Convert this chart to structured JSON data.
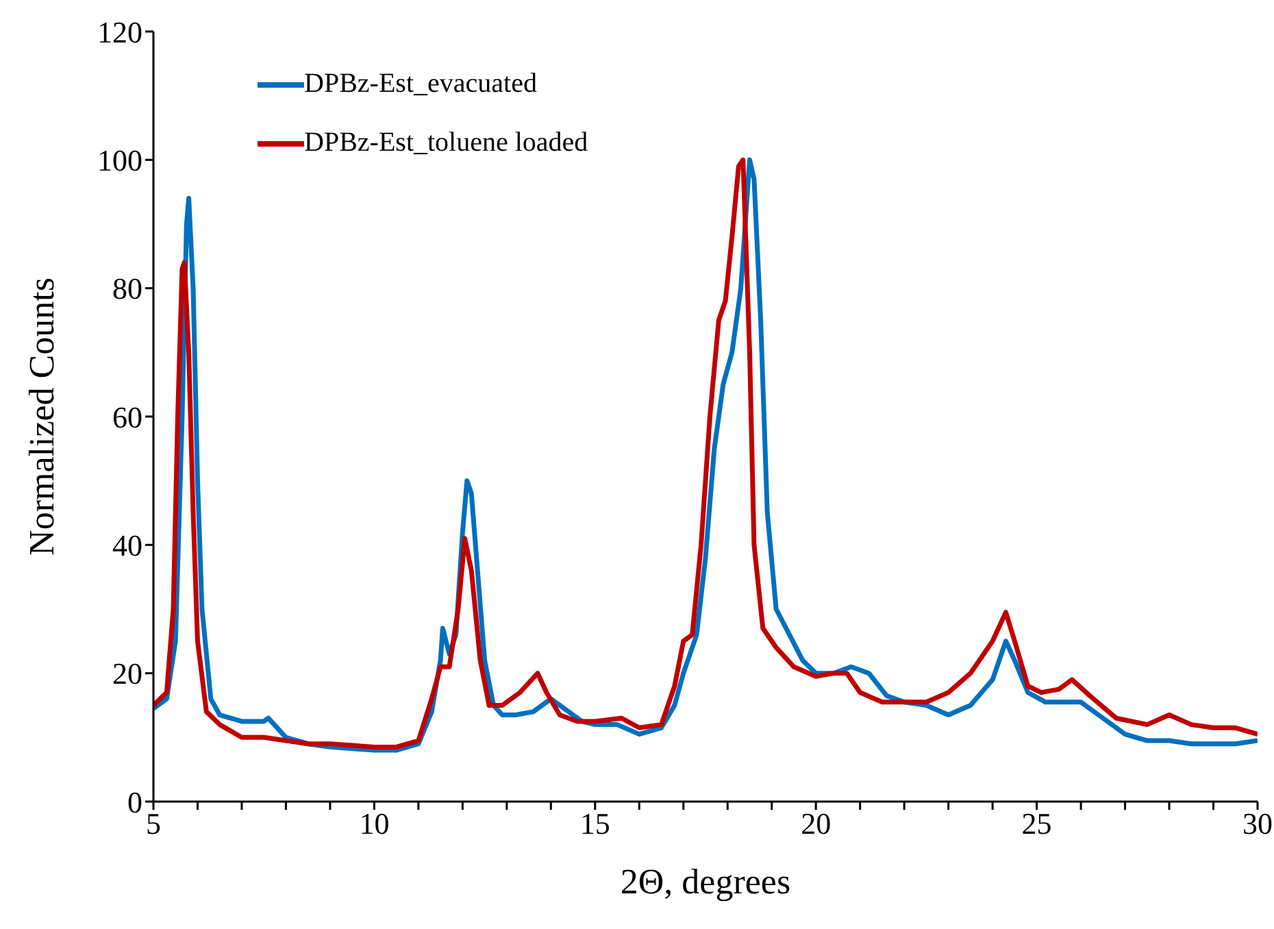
{
  "chart_data": {
    "type": "line",
    "xlabel": "2Θ, degrees",
    "ylabel": "Normalized Counts",
    "xlim": [
      5,
      30
    ],
    "ylim": [
      0,
      120
    ],
    "xticks": [
      5,
      {
        "value": 6,
        "label": null
      },
      {
        "value": 7,
        "label": null
      },
      {
        "value": 8,
        "label": null
      },
      {
        "value": 9,
        "label": null
      },
      10,
      {
        "value": 11,
        "label": null
      },
      {
        "value": 12,
        "label": null
      },
      {
        "value": 13,
        "label": null
      },
      {
        "value": 14,
        "label": null
      },
      15,
      {
        "value": 16,
        "label": null
      },
      {
        "value": 17,
        "label": null
      },
      {
        "value": 18,
        "label": null
      },
      {
        "value": 19,
        "label": null
      },
      20,
      {
        "value": 21,
        "label": null
      },
      {
        "value": 22,
        "label": null
      },
      {
        "value": 23,
        "label": null
      },
      {
        "value": 24,
        "label": null
      },
      25,
      {
        "value": 26,
        "label": null
      },
      {
        "value": 27,
        "label": null
      },
      {
        "value": 28,
        "label": null
      },
      {
        "value": 29,
        "label": null
      },
      30
    ],
    "yticks": [
      0,
      20,
      40,
      60,
      80,
      100,
      120
    ],
    "grid": false,
    "legend": "top left",
    "marker": "none",
    "line_style": "solid",
    "series": [
      {
        "name": "DPBz-Est_evacuated",
        "color": "#0070c0",
        "x": [
          5.0,
          5.3,
          5.5,
          5.65,
          5.75,
          5.8,
          5.9,
          6.0,
          6.1,
          6.3,
          6.5,
          7.0,
          7.5,
          7.6,
          8.0,
          8.5,
          9.0,
          10,
          10.5,
          11.0,
          11.3,
          11.5,
          11.55,
          11.7,
          11.85,
          12.0,
          12.1,
          12.2,
          12.35,
          12.5,
          12.7,
          12.9,
          13.2,
          13.6,
          14.0,
          14.3,
          14.7,
          15,
          15.5,
          16,
          16.5,
          16.8,
          17.0,
          17.3,
          17.5,
          17.7,
          17.9,
          18.1,
          18.3,
          18.5,
          18.6,
          18.75,
          18.9,
          19.1,
          19.4,
          19.7,
          20,
          20.4,
          20.8,
          21.2,
          21.6,
          22,
          22.5,
          23,
          23.5,
          24,
          24.3,
          24.5,
          24.8,
          25.2,
          25.6,
          26,
          26.5,
          27,
          27.5,
          28,
          28.5,
          29,
          29.5,
          30
        ],
        "values": [
          14.5,
          16,
          25,
          60,
          90,
          94,
          80,
          50,
          30,
          16,
          13.5,
          12.5,
          12.5,
          13,
          10,
          9,
          8.5,
          8,
          8,
          9,
          14,
          22,
          27,
          23,
          26,
          42,
          50,
          48,
          35,
          22,
          15,
          13.5,
          13.5,
          14,
          16,
          14.5,
          12.5,
          12,
          12,
          10.5,
          11.5,
          15,
          20,
          26,
          38,
          55,
          65,
          70,
          80,
          100,
          97,
          75,
          45,
          30,
          26,
          22,
          20,
          20,
          21,
          20,
          16.5,
          15.5,
          15,
          13.5,
          15,
          19,
          25,
          22,
          17,
          15.5,
          15.5,
          15.5,
          13,
          10.5,
          9.5,
          9.5,
          9,
          9,
          9,
          9.5
        ]
      },
      {
        "name": "DPBz-Est_toluene loaded",
        "color": "#c00000",
        "x": [
          5.0,
          5.3,
          5.45,
          5.55,
          5.65,
          5.7,
          5.8,
          5.9,
          6.0,
          6.2,
          6.5,
          7.0,
          7.5,
          8.0,
          8.5,
          9,
          10,
          10.5,
          11.0,
          11.3,
          11.5,
          11.7,
          11.9,
          12.05,
          12.2,
          12.4,
          12.6,
          12.9,
          13.3,
          13.7,
          13.9,
          14.2,
          14.6,
          15,
          15.6,
          16,
          16.5,
          16.8,
          17.0,
          17.2,
          17.4,
          17.6,
          17.8,
          17.95,
          18.1,
          18.25,
          18.35,
          18.5,
          18.6,
          18.8,
          19.1,
          19.5,
          20,
          20.4,
          20.7,
          21.0,
          21.5,
          22,
          22.5,
          23,
          23.5,
          24,
          24.3,
          24.5,
          24.8,
          25.1,
          25.5,
          25.8,
          26.2,
          26.8,
          27.5,
          28,
          28.5,
          29,
          29.5,
          30
        ],
        "values": [
          15,
          17,
          30,
          60,
          83,
          84,
          70,
          45,
          25,
          14,
          12,
          10,
          10,
          9.5,
          9,
          9,
          8.5,
          8.5,
          9.5,
          16,
          21,
          21,
          30,
          41,
          36,
          22,
          15,
          15,
          17,
          20,
          17,
          13.5,
          12.5,
          12.5,
          13,
          11.5,
          12,
          18,
          25,
          26,
          40,
          60,
          75,
          78,
          88,
          99,
          100,
          70,
          40,
          27,
          24,
          21,
          19.5,
          20,
          20,
          17,
          15.5,
          15.5,
          15.5,
          17,
          20,
          25,
          29.5,
          25,
          18,
          17,
          17.5,
          19,
          16.5,
          13,
          12,
          13.5,
          12,
          11.5,
          11.5,
          10.5
        ]
      }
    ]
  }
}
